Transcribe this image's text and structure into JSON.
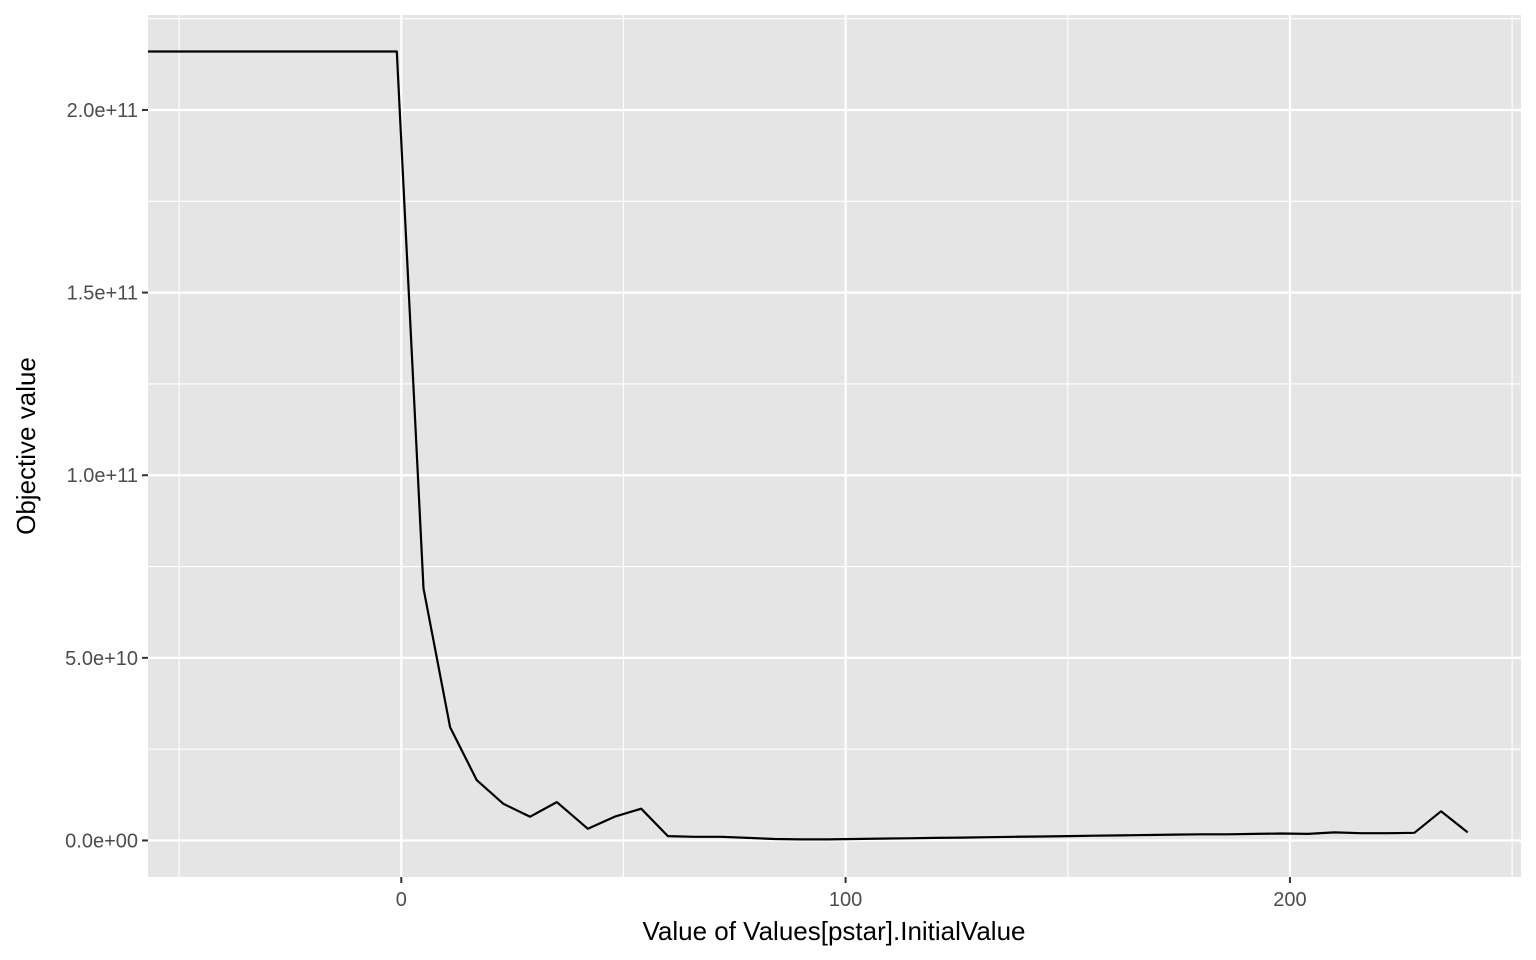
{
  "chart_data": {
    "type": "line",
    "title": "",
    "xlabel": "Value of Values[pstar].InitialValue",
    "ylabel": "Objective value",
    "xlim": [
      -57,
      252
    ],
    "ylim": [
      -10000000000,
      226000000000
    ],
    "x_ticks": [
      {
        "value": 0,
        "label": "0"
      },
      {
        "value": 100,
        "label": "100"
      },
      {
        "value": 200,
        "label": "200"
      }
    ],
    "y_ticks": [
      {
        "value": 0,
        "label": "0.0e+00"
      },
      {
        "value": 50000000000,
        "label": "5.0e+10"
      },
      {
        "value": 100000000000,
        "label": "1.0e+11"
      },
      {
        "value": 150000000000,
        "label": "1.5e+11"
      },
      {
        "value": 200000000000,
        "label": "2.0e+11"
      }
    ],
    "grid": true,
    "background": "#e5e5e5",
    "grid_color": "#ffffff",
    "line_color": "#000000",
    "series": [
      {
        "x": [
          -57,
          -1,
          5,
          11,
          17,
          23,
          29,
          35,
          42,
          48,
          54,
          60,
          66,
          72,
          78,
          84,
          90,
          96,
          102,
          108,
          114,
          120,
          126,
          132,
          138,
          144,
          150,
          156,
          162,
          168,
          174,
          180,
          186,
          192,
          198,
          204,
          210,
          216,
          222,
          228,
          234,
          240
        ],
        "y": [
          216000000000,
          216000000000,
          69000000000,
          31000000000,
          16500000000,
          10000000000,
          6500000000,
          10500000000,
          3200000000,
          6500000000,
          8700000000,
          1200000000,
          1000000000,
          1000000000,
          700000000,
          400000000,
          300000000,
          300000000,
          400000000,
          500000000,
          600000000,
          700000000,
          800000000,
          900000000,
          1000000000,
          1100000000,
          1200000000,
          1300000000,
          1400000000,
          1500000000,
          1600000000,
          1700000000,
          1700000000,
          1800000000,
          1900000000,
          1800000000,
          2200000000,
          2000000000,
          2000000000,
          2100000000,
          8000000000,
          2200000000
        ]
      }
    ]
  }
}
